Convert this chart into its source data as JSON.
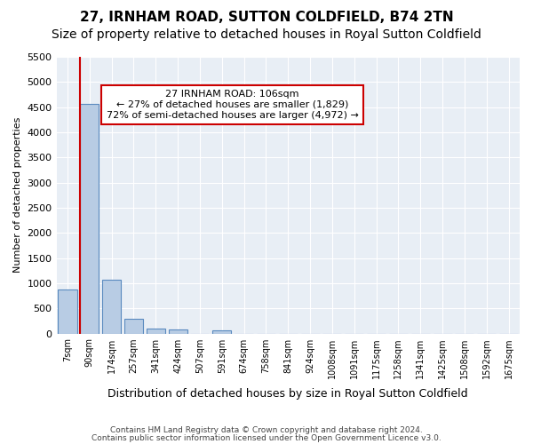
{
  "title": "27, IRNHAM ROAD, SUTTON COLDFIELD, B74 2TN",
  "subtitle": "Size of property relative to detached houses in Royal Sutton Coldfield",
  "xlabel": "Distribution of detached houses by size in Royal Sutton Coldfield",
  "ylabel": "Number of detached properties",
  "footnote1": "Contains HM Land Registry data © Crown copyright and database right 2024.",
  "footnote2": "Contains public sector information licensed under the Open Government Licence v3.0.",
  "bin_labels": [
    "7sqm",
    "90sqm",
    "174sqm",
    "257sqm",
    "341sqm",
    "424sqm",
    "507sqm",
    "591sqm",
    "674sqm",
    "758sqm",
    "841sqm",
    "924sqm",
    "1008sqm",
    "1091sqm",
    "1175sqm",
    "1258sqm",
    "1341sqm",
    "1425sqm",
    "1508sqm",
    "1592sqm",
    "1675sqm"
  ],
  "bar_values": [
    880,
    4570,
    1060,
    290,
    90,
    80,
    0,
    60,
    0,
    0,
    0,
    0,
    0,
    0,
    0,
    0,
    0,
    0,
    0,
    0,
    0
  ],
  "bar_color": "#b8cce4",
  "bar_edge_color": "#5a8abf",
  "subject_line_color": "#cc0000",
  "annotation_text": "27 IRNHAM ROAD: 106sqm\n← 27% of detached houses are smaller (1,829)\n72% of semi-detached houses are larger (4,972) →",
  "annotation_box_color": "#ffffff",
  "annotation_box_edge": "#cc0000",
  "ylim": [
    0,
    5500
  ],
  "yticks": [
    0,
    500,
    1000,
    1500,
    2000,
    2500,
    3000,
    3500,
    4000,
    4500,
    5000,
    5500
  ],
  "plot_bg_color": "#e8eef5",
  "title_fontsize": 11,
  "subtitle_fontsize": 10
}
